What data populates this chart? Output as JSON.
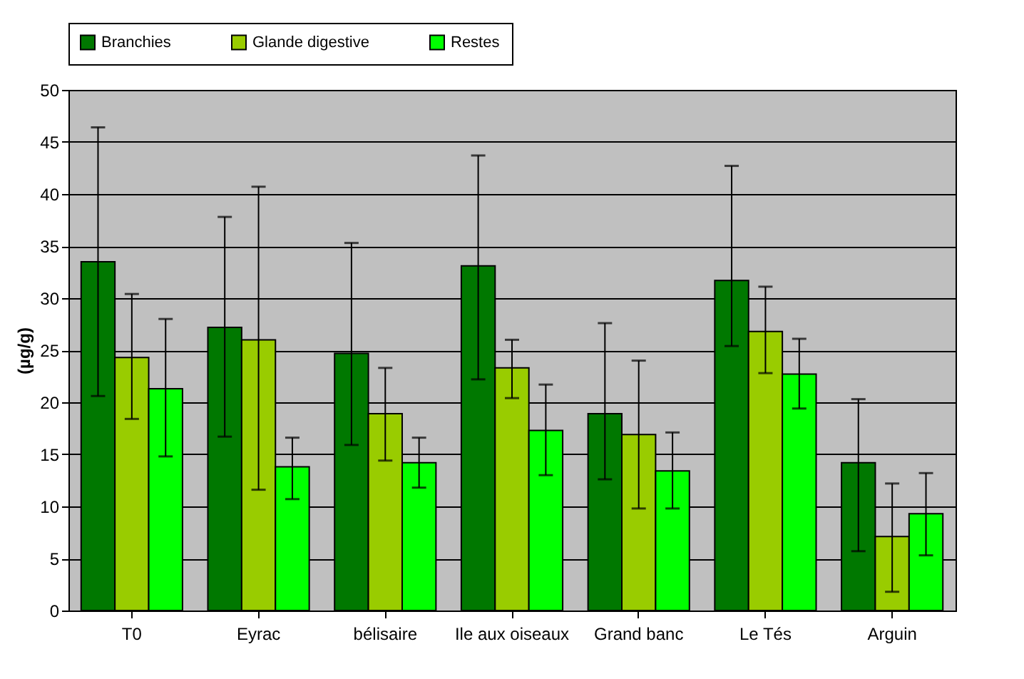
{
  "chart_data": {
    "type": "bar",
    "ylabel": "(µg/g)",
    "categories": [
      "T0",
      "Eyrac",
      "bélisaire",
      "Ile aux oiseaux",
      "Grand banc",
      "Le Tés",
      "Arguin"
    ],
    "series": [
      {
        "name": "Branchies",
        "color": "#007800",
        "values": [
          33.5,
          27.2,
          24.7,
          33.1,
          18.9,
          31.7,
          14.2
        ],
        "errors": [
          [
            20.6,
            46.4
          ],
          [
            16.7,
            37.8
          ],
          [
            15.9,
            35.3
          ],
          [
            22.2,
            43.7
          ],
          [
            12.6,
            27.6
          ],
          [
            25.4,
            42.7
          ],
          [
            5.7,
            20.3
          ]
        ]
      },
      {
        "name": "Glande digestive",
        "color": "#99cc00",
        "values": [
          24.3,
          26.0,
          18.9,
          23.3,
          16.9,
          26.8,
          7.1
        ],
        "errors": [
          [
            18.4,
            30.4
          ],
          [
            11.6,
            40.7
          ],
          [
            14.4,
            23.3
          ],
          [
            20.4,
            26.0
          ],
          [
            9.8,
            24.0
          ],
          [
            22.8,
            31.1
          ],
          [
            1.8,
            12.2
          ]
        ]
      },
      {
        "name": "Restes",
        "color": "#00ff00",
        "values": [
          21.3,
          13.8,
          14.2,
          17.3,
          13.4,
          22.7,
          9.3
        ],
        "errors": [
          [
            14.8,
            28.0
          ],
          [
            10.7,
            16.6
          ],
          [
            11.8,
            16.6
          ],
          [
            13.0,
            21.7
          ],
          [
            9.8,
            17.1
          ],
          [
            19.4,
            26.1
          ],
          [
            5.3,
            13.2
          ]
        ]
      }
    ],
    "ylim": [
      0,
      50
    ],
    "yticks": [
      0,
      5,
      10,
      15,
      20,
      25,
      30,
      35,
      40,
      45,
      50
    ],
    "grid": "y",
    "legend": "top"
  }
}
